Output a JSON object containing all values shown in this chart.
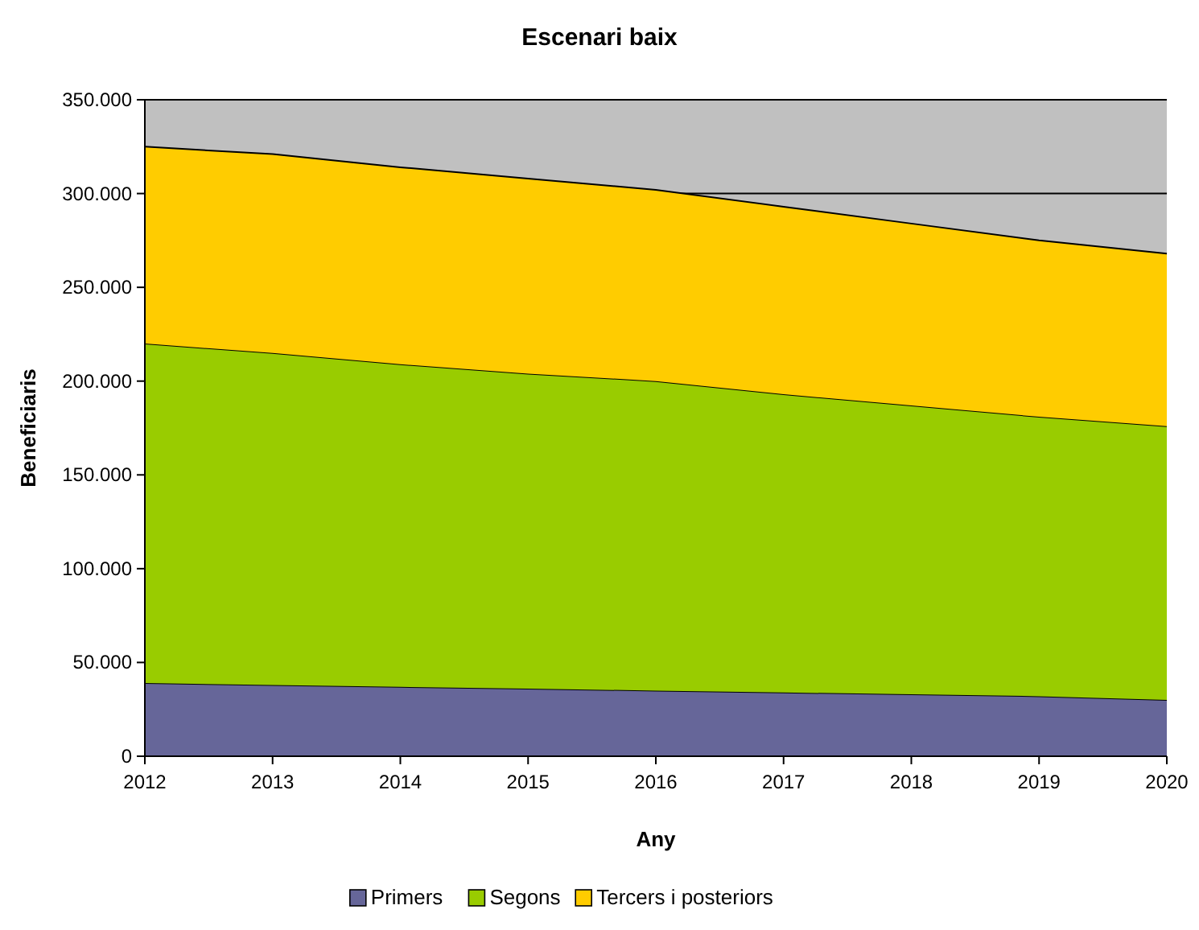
{
  "chart_data": {
    "type": "area",
    "title": "Escenari baix",
    "xlabel": "Any",
    "ylabel": "Beneficiaris",
    "stacked": true,
    "grid": "y",
    "legend": "bottom",
    "x": [
      2012,
      2013,
      2014,
      2015,
      2016,
      2017,
      2018,
      2019,
      2020
    ],
    "xlim": [
      2012,
      2020
    ],
    "xticks": [
      2012,
      2013,
      2014,
      2015,
      2016,
      2017,
      2018,
      2019,
      2020
    ],
    "ylim": [
      0,
      350000
    ],
    "yticks": [
      0,
      {
        "value": 50000,
        "label": "50.000"
      },
      {
        "value": 100000,
        "label": "100.000"
      },
      {
        "value": 150000,
        "label": "150.000"
      },
      {
        "value": 200000,
        "label": "200.000"
      },
      {
        "value": 250000,
        "label": "250.000"
      },
      {
        "value": 300000,
        "label": "300.000"
      },
      {
        "value": 350000,
        "label": "350.000"
      }
    ],
    "series": [
      {
        "name": "Primers",
        "color": "#666699",
        "values": [
          39000,
          38000,
          37000,
          36000,
          35000,
          34000,
          33000,
          32000,
          30000
        ]
      },
      {
        "name": "Segons",
        "color": "#99cc00",
        "values": [
          181000,
          177000,
          172000,
          168000,
          165000,
          159000,
          154000,
          149000,
          146000
        ]
      },
      {
        "name": "Tercers i posteriors",
        "color": "#ffcc00",
        "values": [
          105000,
          106000,
          105000,
          104000,
          102000,
          100000,
          97000,
          94000,
          92000
        ]
      }
    ]
  }
}
